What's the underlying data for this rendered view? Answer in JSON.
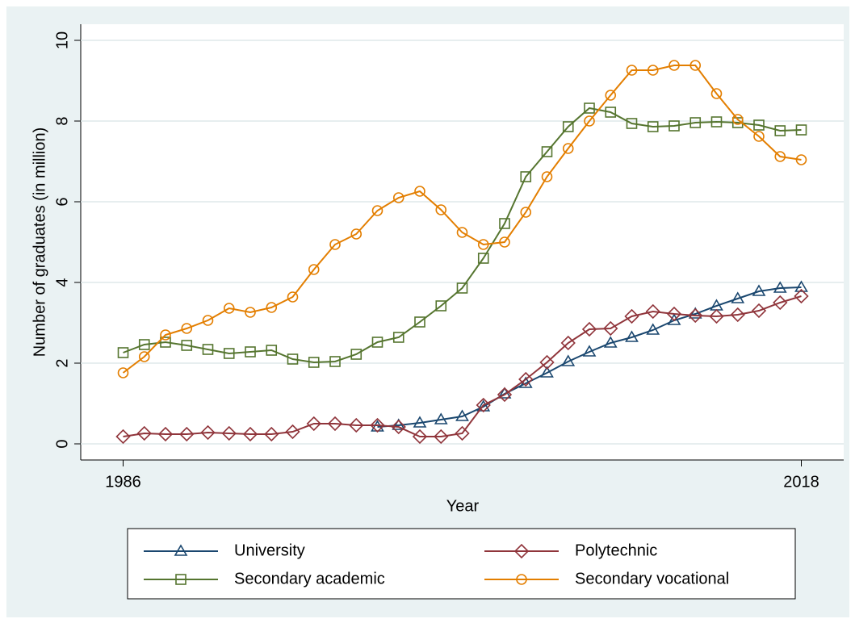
{
  "chart_data": {
    "type": "line",
    "x_label": "Year",
    "y_label": "Number of graduates (in million)",
    "x": [
      1986,
      1987,
      1988,
      1989,
      1990,
      1991,
      1992,
      1993,
      1994,
      1995,
      1996,
      1997,
      1998,
      1999,
      2000,
      2001,
      2002,
      2003,
      2004,
      2005,
      2006,
      2007,
      2008,
      2009,
      2010,
      2011,
      2012,
      2013,
      2014,
      2015,
      2016,
      2017,
      2018
    ],
    "series": [
      {
        "name": "University",
        "color": "#1a476f",
        "marker": "triangle",
        "values": [
          null,
          null,
          null,
          null,
          null,
          null,
          null,
          null,
          null,
          null,
          null,
          null,
          0.42,
          0.46,
          0.52,
          0.6,
          0.68,
          0.92,
          1.24,
          1.5,
          1.76,
          2.04,
          2.28,
          2.5,
          2.64,
          2.82,
          3.06,
          3.22,
          3.42,
          3.6,
          3.78,
          3.86,
          3.88
        ]
      },
      {
        "name": "Polytechnic",
        "color": "#90353b",
        "marker": "diamond",
        "values": [
          0.18,
          0.26,
          0.24,
          0.24,
          0.28,
          0.26,
          0.24,
          0.24,
          0.3,
          0.5,
          0.5,
          0.46,
          0.46,
          0.42,
          0.18,
          0.18,
          0.26,
          0.96,
          1.22,
          1.6,
          2.02,
          2.5,
          2.84,
          2.86,
          3.16,
          3.28,
          3.22,
          3.18,
          3.16,
          3.2,
          3.3,
          3.5,
          3.66
        ]
      },
      {
        "name": "Secondary academic",
        "color": "#55752f",
        "marker": "square",
        "values": [
          2.26,
          2.46,
          2.52,
          2.44,
          2.34,
          2.24,
          2.28,
          2.32,
          2.1,
          2.02,
          2.04,
          2.22,
          2.52,
          2.64,
          3.02,
          3.42,
          3.86,
          4.6,
          5.46,
          6.62,
          7.24,
          7.86,
          8.32,
          8.22,
          7.94,
          7.86,
          7.88,
          7.96,
          7.98,
          7.96,
          7.9,
          7.76,
          7.78
        ]
      },
      {
        "name": "Secondary vocational",
        "color": "#e37e00",
        "marker": "circle",
        "values": [
          1.76,
          2.16,
          2.7,
          2.86,
          3.06,
          3.36,
          3.26,
          3.38,
          3.64,
          4.32,
          4.94,
          5.2,
          5.78,
          6.1,
          6.26,
          5.8,
          5.24,
          4.94,
          5.0,
          5.74,
          6.62,
          7.32,
          8.0,
          8.64,
          9.26,
          9.26,
          9.38,
          9.38,
          8.68,
          8.04,
          7.62,
          7.12,
          7.04
        ]
      }
    ],
    "xlim": [
      1984,
      2020
    ],
    "xticks": [
      1986,
      2018
    ],
    "ylim": [
      -0.4,
      10.4
    ],
    "yticks": [
      0,
      2,
      4,
      6,
      8,
      10
    ],
    "grid": true,
    "legend": "bottom"
  }
}
